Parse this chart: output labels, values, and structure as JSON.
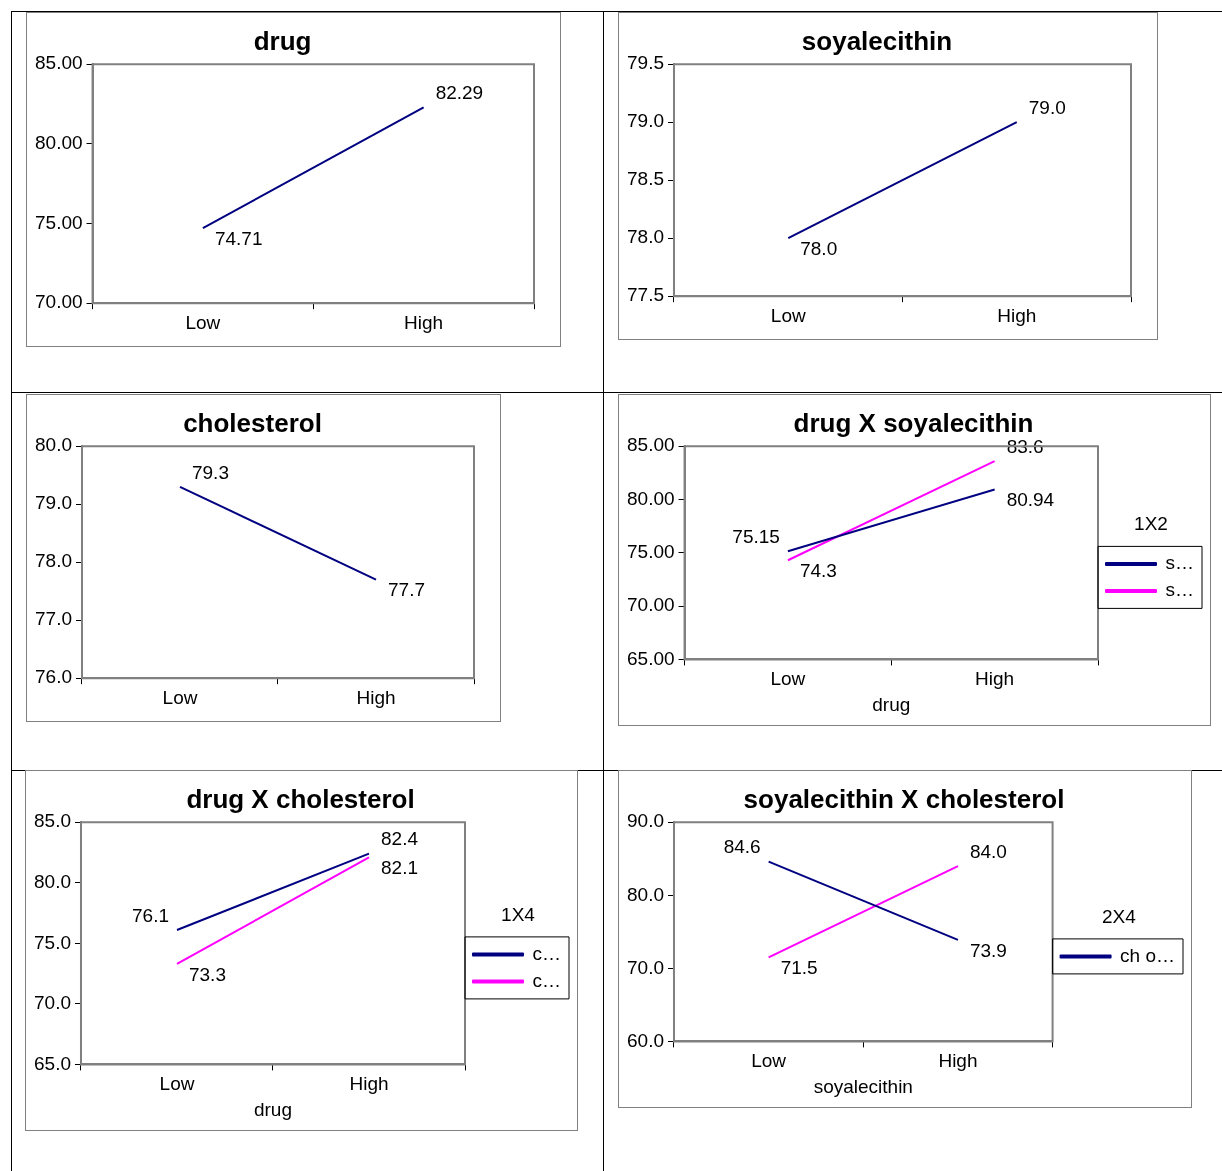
{
  "chart_data": [
    {
      "type": "line",
      "title": "drug",
      "categories": [
        "Low",
        "High"
      ],
      "marker": "none",
      "grid": false,
      "series": [
        {
          "color": "#000080",
          "values": [
            74.71,
            82.29
          ],
          "value_labels": [
            "74.71",
            "82.29"
          ]
        }
      ],
      "ylim": [
        70,
        85
      ],
      "yticks": [
        {
          "value": 70,
          "label": "70.00"
        },
        {
          "value": 75,
          "label": "75.00"
        },
        {
          "value": 80,
          "label": "80.00"
        },
        {
          "value": 85,
          "label": "85.00"
        }
      ]
    },
    {
      "type": "line",
      "title": "soyalecithin",
      "categories": [
        "Low",
        "High"
      ],
      "marker": "none",
      "grid": false,
      "series": [
        {
          "color": "#000080",
          "values": [
            78.0,
            79.0
          ],
          "value_labels": [
            "78.0",
            "79.0"
          ]
        }
      ],
      "ylim": [
        77.5,
        79.5
      ],
      "yticks": [
        77.5,
        {
          "value": 78,
          "label": "78.0"
        },
        78.5,
        {
          "value": 79,
          "label": "79.0"
        },
        79.5
      ]
    },
    {
      "type": "line",
      "title": "cholesterol",
      "categories": [
        "Low",
        "High"
      ],
      "marker": "none",
      "grid": false,
      "series": [
        {
          "color": "#000080",
          "values": [
            79.3,
            77.7
          ],
          "value_labels": [
            "79.3",
            "77.7"
          ]
        }
      ],
      "ylim": [
        76,
        80
      ],
      "yticks": [
        {
          "value": 76,
          "label": "76.0"
        },
        {
          "value": 77,
          "label": "77.0"
        },
        {
          "value": 78,
          "label": "78.0"
        },
        {
          "value": 79,
          "label": "79.0"
        },
        {
          "value": 80,
          "label": "80.0"
        }
      ]
    },
    {
      "type": "line",
      "title": "drug X soyalecithin",
      "categories": [
        "Low",
        "High"
      ],
      "xlabel": "drug",
      "marker": "none",
      "grid": false,
      "legend": "right",
      "legend_title": "1X2",
      "series": [
        {
          "name": "s…",
          "color": "#000080",
          "values": [
            75.15,
            80.94
          ],
          "value_labels": [
            "75.15",
            "80.94"
          ]
        },
        {
          "name": "s…",
          "color": "#ff00ff",
          "values": [
            74.3,
            83.6
          ],
          "value_labels": [
            "74.3",
            "83.6"
          ]
        }
      ],
      "ylim": [
        65,
        85
      ],
      "yticks": [
        {
          "value": 65,
          "label": "65.00"
        },
        {
          "value": 70,
          "label": "70.00"
        },
        {
          "value": 75,
          "label": "75.00"
        },
        {
          "value": 80,
          "label": "80.00"
        },
        {
          "value": 85,
          "label": "85.00"
        }
      ]
    },
    {
      "type": "line",
      "title": "drug X cholesterol",
      "categories": [
        "Low",
        "High"
      ],
      "xlabel": "drug",
      "marker": "none",
      "grid": false,
      "legend": "right",
      "legend_title": "1X4",
      "series": [
        {
          "name": "c…",
          "color": "#000080",
          "values": [
            76.1,
            82.4
          ],
          "value_labels": [
            "76.1",
            "82.4"
          ]
        },
        {
          "name": "c…",
          "color": "#ff00ff",
          "values": [
            73.3,
            82.1
          ],
          "value_labels": [
            "73.3",
            "82.1"
          ]
        }
      ],
      "ylim": [
        65,
        85
      ],
      "yticks": [
        {
          "value": 65,
          "label": "65.0"
        },
        {
          "value": 70,
          "label": "70.0"
        },
        {
          "value": 75,
          "label": "75.0"
        },
        {
          "value": 80,
          "label": "80.0"
        },
        {
          "value": 85,
          "label": "85.0"
        }
      ]
    },
    {
      "type": "line",
      "title": "soyalecithin X cholesterol",
      "categories": [
        "Low",
        "High"
      ],
      "xlabel": "soyalecithin",
      "marker": "none",
      "grid": false,
      "legend": "right",
      "legend_title": "2X4",
      "series": [
        {
          "name": "ch o…",
          "color": "#000080",
          "values": [
            84.6,
            73.9
          ],
          "value_labels": [
            "84.6",
            "73.9"
          ]
        },
        {
          "color": "#ff00ff",
          "values": [
            71.5,
            84.0
          ],
          "value_labels": [
            "71.5",
            "84.0"
          ]
        }
      ],
      "ylim": [
        60,
        90
      ],
      "yticks": [
        {
          "value": 60,
          "label": "60.0"
        },
        {
          "value": 70,
          "label": "70.0"
        },
        {
          "value": 80,
          "label": "80.0"
        },
        {
          "value": 90,
          "label": "90.0"
        }
      ]
    }
  ]
}
